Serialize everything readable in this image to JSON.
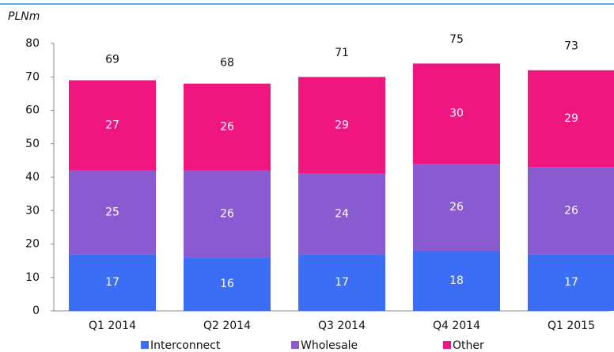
{
  "chart_data": {
    "type": "stacked_bar",
    "y_label": "PLNm",
    "categories": [
      "Q1 2014",
      "Q2 2014",
      "Q3 2014",
      "Q4 2014",
      "Q1 2015"
    ],
    "series": [
      {
        "name": "Interconnect",
        "color": "#3b6ef5",
        "values": [
          17,
          16,
          17,
          18,
          17
        ]
      },
      {
        "name": "Wholesale",
        "color": "#8a5bd0",
        "values": [
          25,
          26,
          24,
          26,
          26
        ]
      },
      {
        "name": "Other",
        "color": "#f0167f",
        "values": [
          27,
          26,
          29,
          30,
          29
        ]
      }
    ],
    "totals": [
      69,
      68,
      71,
      75,
      73
    ],
    "ylim": [
      0,
      80
    ],
    "yticks": [
      0,
      10,
      20,
      30,
      40,
      50,
      60,
      70,
      80
    ],
    "grid": false,
    "legend": "bottom"
  }
}
